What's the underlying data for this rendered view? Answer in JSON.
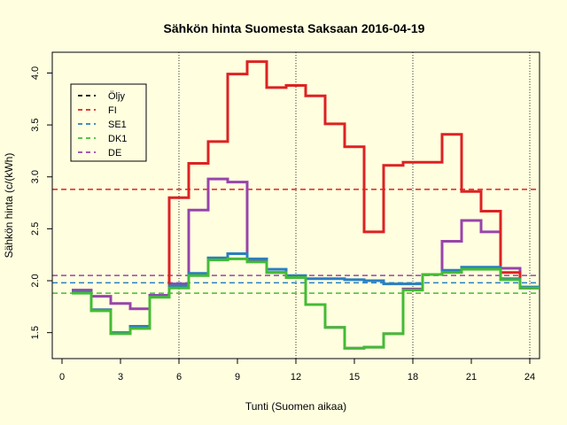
{
  "chart_data": {
    "type": "line",
    "title": "Sähkön hinta Suomesta Saksaan 2016-04-19",
    "xlabel": "Tunti (Suomen aikaa)",
    "ylabel": "Sähkön hinta (c/(kWh)",
    "xlim": [
      -0.5,
      24.5
    ],
    "ylim": [
      1.25,
      4.2
    ],
    "xticks": [
      0,
      3,
      6,
      9,
      12,
      15,
      18,
      21,
      24
    ],
    "yticks": [
      1.5,
      2.0,
      2.5,
      3.0,
      3.5,
      4.0
    ],
    "vlines": [
      6,
      12,
      18,
      24
    ],
    "legend": {
      "position": "top-left",
      "entries": [
        {
          "name": "Öljy",
          "color": "#000000"
        },
        {
          "name": "FI",
          "color": "#DD2222"
        },
        {
          "name": "SE1",
          "color": "#2A7FC0"
        },
        {
          "name": "DK1",
          "color": "#44BB33"
        },
        {
          "name": "DE",
          "color": "#9944AA"
        }
      ]
    },
    "hlines": [
      {
        "name": "FI",
        "value": 2.88,
        "color": "#DD2222"
      },
      {
        "name": "SE1",
        "value": 1.98,
        "color": "#2A7FC0"
      },
      {
        "name": "DK1",
        "value": 1.88,
        "color": "#44BB33"
      },
      {
        "name": "DE",
        "value": 2.05,
        "color": "#9944AA"
      }
    ],
    "x": [
      1,
      2,
      3,
      4,
      5,
      6,
      7,
      8,
      9,
      10,
      11,
      12,
      13,
      14,
      15,
      16,
      17,
      18,
      19,
      20,
      21,
      22,
      23,
      24
    ],
    "series": [
      {
        "name": "DE",
        "color": "#9944AA",
        "values": [
          1.91,
          1.85,
          1.78,
          1.73,
          1.86,
          1.97,
          2.68,
          2.98,
          2.95,
          2.19,
          2.08,
          2.03,
          1.77,
          1.55,
          1.35,
          1.36,
          1.49,
          1.92,
          2.06,
          2.38,
          2.58,
          2.47,
          2.12,
          1.93
        ]
      },
      {
        "name": "FI",
        "color": "#DD2222",
        "values": [
          1.89,
          1.72,
          1.5,
          1.56,
          1.85,
          2.8,
          3.13,
          3.34,
          3.99,
          4.11,
          3.86,
          3.88,
          3.78,
          3.51,
          3.29,
          2.47,
          3.11,
          3.14,
          3.14,
          3.41,
          2.86,
          2.67,
          2.08,
          1.93
        ]
      },
      {
        "name": "SE1",
        "color": "#2A7FC0",
        "values": [
          1.89,
          1.72,
          1.5,
          1.56,
          1.85,
          1.95,
          2.07,
          2.22,
          2.26,
          2.21,
          2.11,
          2.05,
          2.02,
          2.02,
          2.01,
          2.0,
          1.97,
          1.97,
          2.06,
          2.1,
          2.13,
          2.13,
          2.02,
          1.94
        ]
      },
      {
        "name": "DK1",
        "color": "#44BB33",
        "values": [
          1.88,
          1.71,
          1.49,
          1.54,
          1.84,
          1.93,
          2.05,
          2.2,
          2.21,
          2.18,
          2.08,
          2.03,
          1.77,
          1.55,
          1.35,
          1.36,
          1.49,
          1.91,
          2.06,
          2.08,
          2.11,
          2.11,
          2.01,
          1.93
        ]
      }
    ]
  }
}
